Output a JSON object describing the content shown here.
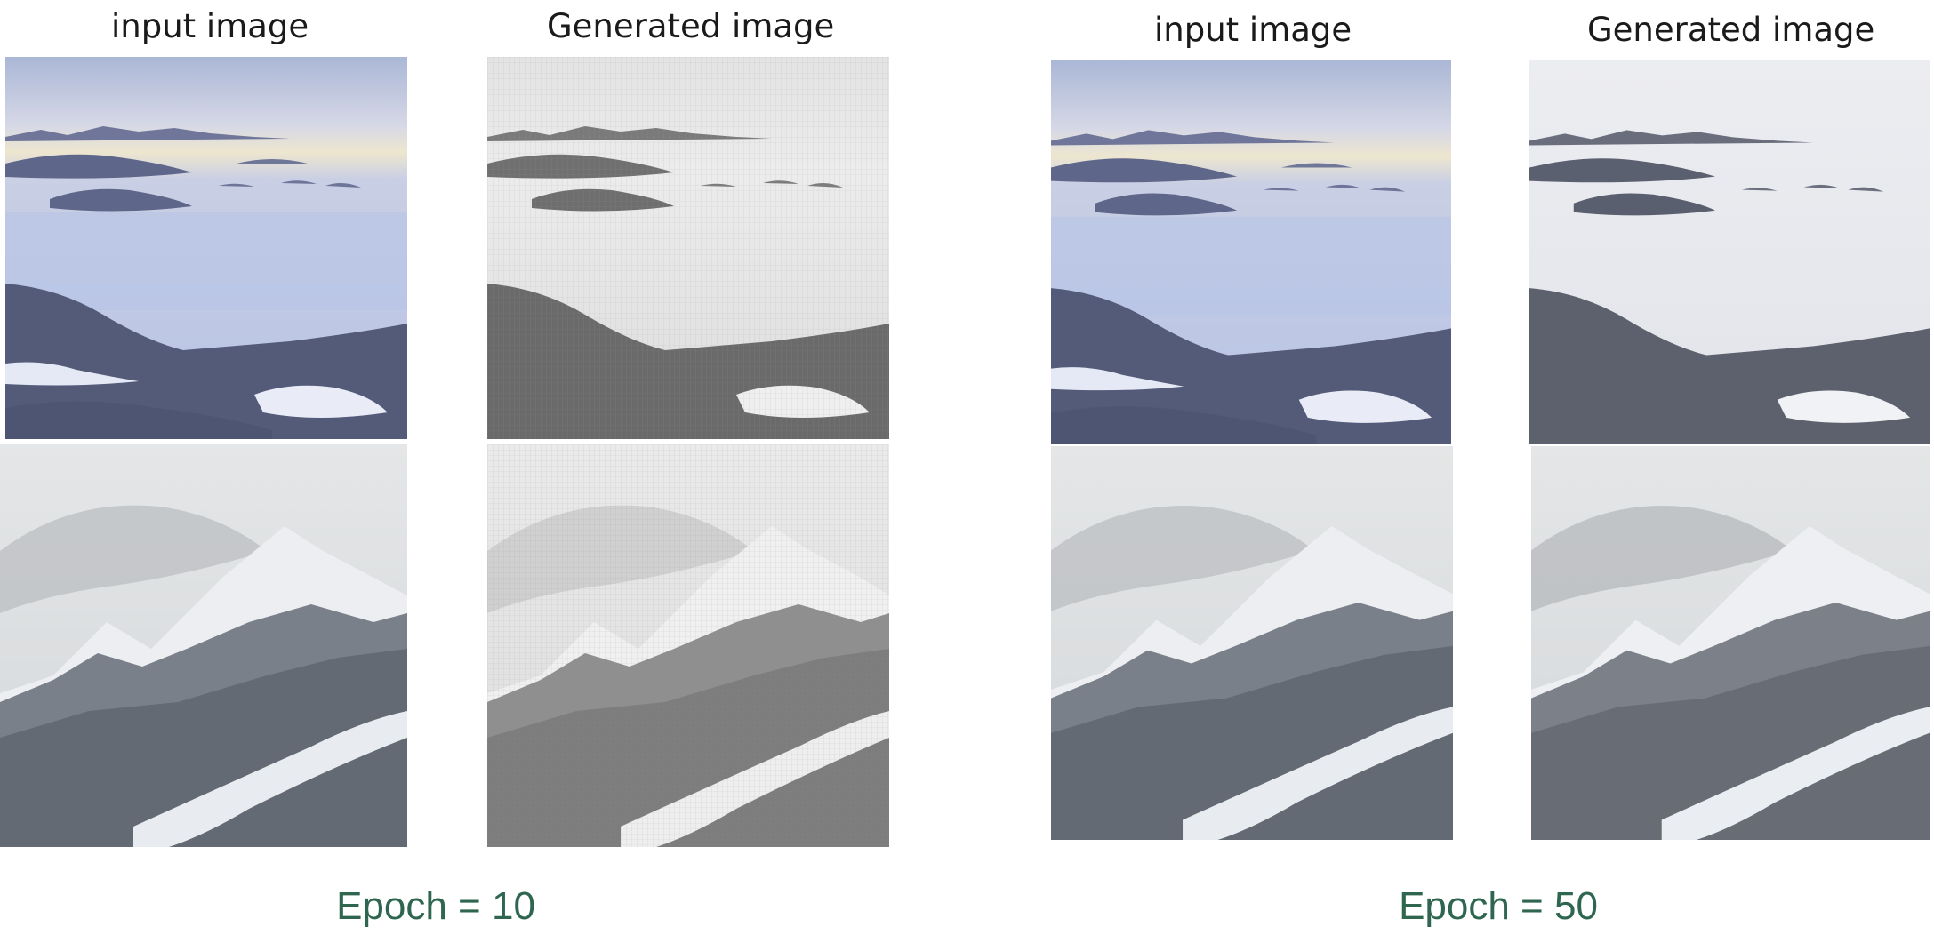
{
  "panels": [
    {
      "id": "epoch-10",
      "caption": "Epoch = 10",
      "columns": [
        {
          "title": "input image",
          "kind": "input"
        },
        {
          "title": "Generated image",
          "kind": "generated"
        }
      ],
      "rows": [
        {
          "scene": "mountains above sea of clouds"
        },
        {
          "scene": "snowy forested mountain peak"
        }
      ]
    },
    {
      "id": "epoch-50",
      "caption": "Epoch = 50",
      "columns": [
        {
          "title": "input image",
          "kind": "input"
        },
        {
          "title": "Generated image",
          "kind": "generated"
        }
      ],
      "rows": [
        {
          "scene": "mountains above sea of clouds"
        },
        {
          "scene": "snowy forested mountain peak"
        }
      ]
    }
  ],
  "colors": {
    "caption": "#2e6650",
    "sky_blue": "#c4cde4",
    "cloud_sea": "#b9c4e4",
    "ridge_blue": "#5b6387",
    "gray_sky": "#dadcdd",
    "forest_gray": "#6e747c"
  }
}
